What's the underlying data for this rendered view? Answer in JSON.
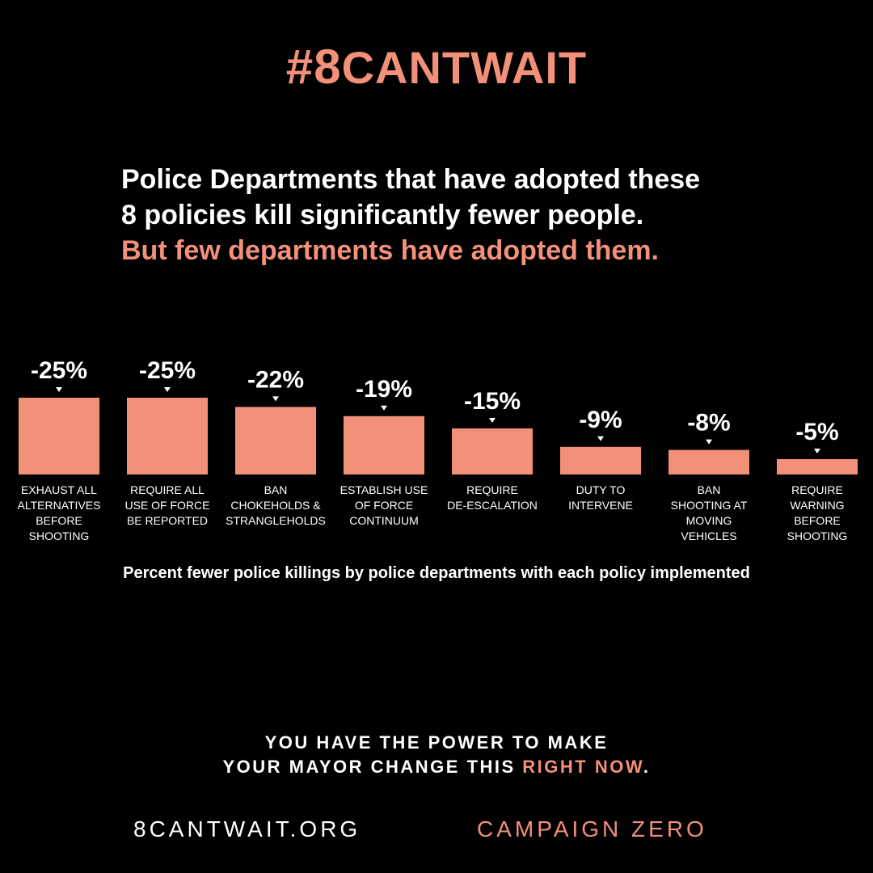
{
  "colors": {
    "accent": "#F3907A",
    "background": "#000000",
    "text": "#FFFFFF"
  },
  "header": {
    "hashtag_prefix": "#8",
    "hashtag_rest": "CANTWAIT"
  },
  "headline": {
    "line1": "Police Departments that have adopted these",
    "line2": "8 policies kill significantly fewer people.",
    "line3": "But few departments have adopted them."
  },
  "chart_data": {
    "type": "bar",
    "categories": [
      "EXHAUST ALL ALTERNATIVES BEFORE SHOOTING",
      "REQUIRE ALL USE OF FORCE BE REPORTED",
      "BAN CHOKEHOLDS & STRANGLEHOLDS",
      "ESTABLISH USE OF FORCE CONTINUUM",
      "REQUIRE DE-ESCALATION",
      "DUTY TO INTERVENE",
      "BAN SHOOTING AT MOVING VEHICLES",
      "REQUIRE WARNING BEFORE SHOOTING"
    ],
    "category_lines": [
      [
        "EXHAUST ALL",
        "ALTERNATIVES",
        "BEFORE",
        "SHOOTING"
      ],
      [
        "REQUIRE ALL",
        "USE OF FORCE",
        "BE REPORTED"
      ],
      [
        "BAN",
        "CHOKEHOLDS &",
        "STRANGLEHOLDS"
      ],
      [
        "ESTABLISH USE",
        "OF FORCE",
        "CONTINUUM"
      ],
      [
        "REQUIRE",
        "DE-ESCALATION"
      ],
      [
        "DUTY TO",
        "INTERVENE"
      ],
      [
        "BAN",
        "SHOOTING AT",
        "MOVING",
        "VEHICLES"
      ],
      [
        "REQUIRE",
        "WARNING",
        "BEFORE",
        "SHOOTING"
      ]
    ],
    "values": [
      -25,
      -25,
      -22,
      -19,
      -15,
      -9,
      -8,
      -5
    ],
    "data_labels": [
      "-25%",
      "-25%",
      "-22%",
      "-19%",
      "-15%",
      "-9%",
      "-8%",
      "-5%"
    ],
    "title": "",
    "xlabel": "Percent fewer police killings by police departments with each policy implemented",
    "ylabel": "",
    "ylim": [
      -25,
      0
    ],
    "grid": false,
    "legend": "none"
  },
  "footer": {
    "cta_line1": "YOU HAVE THE POWER TO MAKE",
    "cta_line2_prefix": "YOUR MAYOR CHANGE THIS ",
    "cta_line2_highlight": "RIGHT NOW",
    "cta_line2_suffix": ".",
    "website": "8CANTWAIT.ORG",
    "organization": "CAMPAIGN ZERO"
  }
}
